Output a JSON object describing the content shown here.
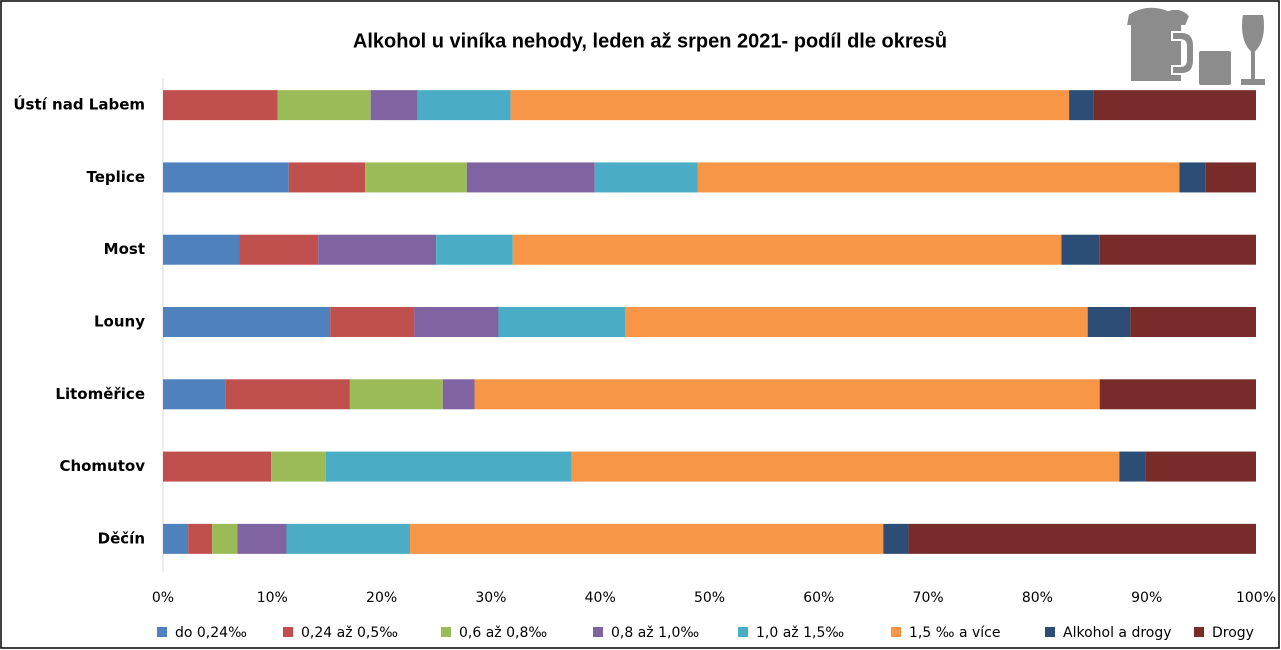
{
  "chart_data": {
    "type": "stacked-barh",
    "title": "Alkohol u viníka nehody, leden až srpen 2021- podíl dle okresů",
    "categories": [
      "Ústí nad Labem",
      "Teplice",
      "Most",
      "Louny",
      "Litoměřice",
      "Chomutov",
      "Děčín"
    ],
    "series": [
      {
        "name": "do 0,24‰",
        "color": "#4f81bd",
        "values": [
          0,
          11.5,
          7.0,
          15.3,
          5.7,
          0,
          2.3
        ]
      },
      {
        "name": "0,24 až 0,5‰",
        "color": "#c0504d",
        "values": [
          10.5,
          7.0,
          7.2,
          7.7,
          11.4,
          9.9,
          2.2
        ]
      },
      {
        "name": "0,6 až 0,8‰",
        "color": "#9bbb59",
        "values": [
          8.5,
          9.3,
          0,
          0,
          8.5,
          5.0,
          2.3
        ]
      },
      {
        "name": "0,8 až 1,0‰",
        "color": "#8064a2",
        "values": [
          4.3,
          11.7,
          10.8,
          7.7,
          2.9,
          0,
          4.5
        ]
      },
      {
        "name": "1,0 až 1,5‰",
        "color": "#4bacc6",
        "values": [
          8.5,
          9.4,
          7.0,
          11.6,
          0,
          22.5,
          11.3
        ]
      },
      {
        "name": "1,5 ‰ a více",
        "color": "#f79646",
        "values": [
          51.1,
          44.1,
          50.2,
          42.3,
          57.2,
          50.1,
          43.3
        ]
      },
      {
        "name": "Alkohol a drogy",
        "color": "#2c4d75",
        "values": [
          2.2,
          2.4,
          3.5,
          3.9,
          0,
          2.4,
          2.3
        ]
      },
      {
        "name": "Drogy",
        "color": "#772c2a",
        "values": [
          14.9,
          4.6,
          14.3,
          11.5,
          14.3,
          10.1,
          31.8
        ]
      }
    ],
    "xlim": [
      0,
      100
    ],
    "xticks": [
      {
        "value": 0,
        "label": "0%"
      },
      {
        "value": 10,
        "label": "10%"
      },
      {
        "value": 20,
        "label": "20%"
      },
      {
        "value": 30,
        "label": "30%"
      },
      {
        "value": 40,
        "label": "40%"
      },
      {
        "value": 50,
        "label": "50%"
      },
      {
        "value": 60,
        "label": "60%"
      },
      {
        "value": 70,
        "label": "70%"
      },
      {
        "value": 80,
        "label": "80%"
      },
      {
        "value": 90,
        "label": "90%"
      },
      {
        "value": 100,
        "label": "100%"
      }
    ],
    "legend": "bottom"
  }
}
